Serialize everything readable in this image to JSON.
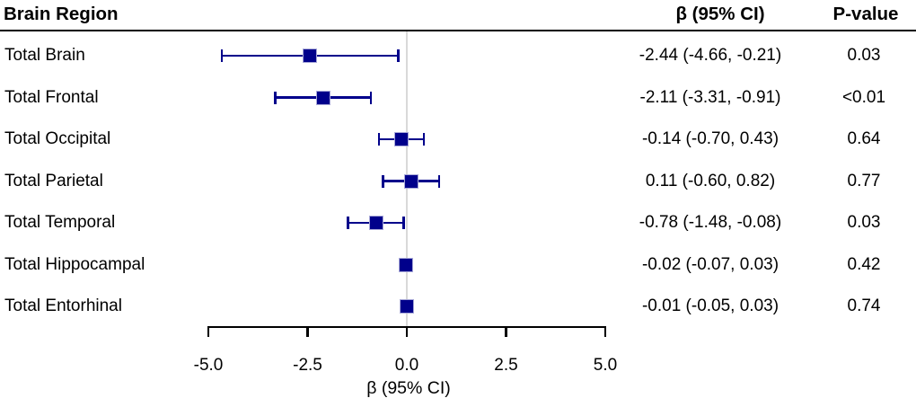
{
  "colors": {
    "marker_fill": "#00008b",
    "marker_edge": "#a8a8d8",
    "ci_line": "#00008b",
    "zero_line": "#d9d9d9",
    "axis_line": "#000000",
    "text": "#000000",
    "background": "#ffffff"
  },
  "columns": {
    "region_header": "Brain Region",
    "beta_header": "β (95% CI)",
    "pvalue_header": "P-value"
  },
  "chart_data": {
    "type": "forest",
    "title": "",
    "xlabel": "β (95% CI)",
    "xlim": [
      -5.0,
      5.0
    ],
    "reference_line": 0.0,
    "axis_ticks": [
      {
        "value": -5.0,
        "label": "-5.0"
      },
      {
        "value": -2.5,
        "label": "-2.5"
      },
      {
        "value": 0.0,
        "label": "0.0"
      },
      {
        "value": 2.5,
        "label": "2.5"
      },
      {
        "value": 5.0,
        "label": "5.0"
      }
    ],
    "rows": [
      {
        "label": "Total Brain",
        "beta": -2.44,
        "ci_low": -4.66,
        "ci_high": -0.21,
        "beta_text": "-2.44 (-4.66, -0.21)",
        "p_value": "0.03"
      },
      {
        "label": "Total Frontal",
        "beta": -2.11,
        "ci_low": -3.31,
        "ci_high": -0.91,
        "beta_text": "-2.11 (-3.31, -0.91)",
        "p_value": "<0.01"
      },
      {
        "label": "Total Occipital",
        "beta": -0.14,
        "ci_low": -0.7,
        "ci_high": 0.43,
        "beta_text": "-0.14 (-0.70, 0.43)",
        "p_value": "0.64"
      },
      {
        "label": "Total Parietal",
        "beta": 0.11,
        "ci_low": -0.6,
        "ci_high": 0.82,
        "beta_text": "0.11 (-0.60, 0.82)",
        "p_value": "0.77"
      },
      {
        "label": "Total Temporal",
        "beta": -0.78,
        "ci_low": -1.48,
        "ci_high": -0.08,
        "beta_text": "-0.78 (-1.48, -0.08)",
        "p_value": "0.03"
      },
      {
        "label": "Total Hippocampal",
        "beta": -0.02,
        "ci_low": -0.07,
        "ci_high": 0.03,
        "beta_text": "-0.02 (-0.07, 0.03)",
        "p_value": "0.42"
      },
      {
        "label": "Total Entorhinal",
        "beta": -0.01,
        "ci_low": -0.05,
        "ci_high": 0.03,
        "beta_text": "-0.01 (-0.05, 0.03)",
        "p_value": "0.74"
      }
    ]
  }
}
